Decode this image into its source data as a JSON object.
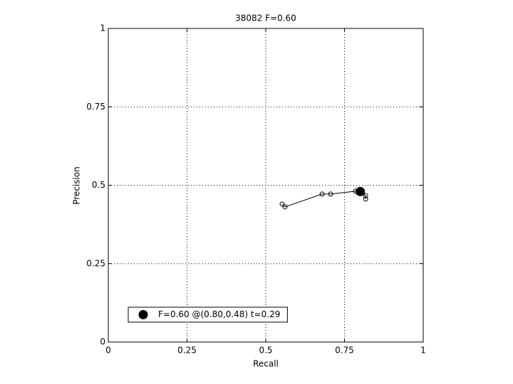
{
  "chart_data": {
    "type": "scatter",
    "title": "38082 F=0.60",
    "xlabel": "Recall",
    "ylabel": "Precision",
    "xlim": [
      0,
      1
    ],
    "ylim": [
      0,
      1
    ],
    "xticks": [
      0,
      0.25,
      0.5,
      0.75,
      1
    ],
    "yticks": [
      0,
      0.25,
      0.5,
      0.75,
      1
    ],
    "grid": true,
    "legend_position": "lower left",
    "series": [
      {
        "color": "#000000",
        "marker": "open",
        "line": true,
        "x": [
          0.552,
          0.561,
          0.679,
          0.706,
          0.785,
          0.803,
          0.817,
          0.817
        ],
        "values": [
          0.44,
          0.431,
          0.472,
          0.472,
          0.481,
          0.478,
          0.467,
          0.456
        ]
      },
      {
        "name": "F=0.60 @(0.80,0.48) t=0.29",
        "color": "#000000",
        "marker": "filled",
        "line": false,
        "x": [
          0.8
        ],
        "values": [
          0.48
        ]
      }
    ]
  }
}
